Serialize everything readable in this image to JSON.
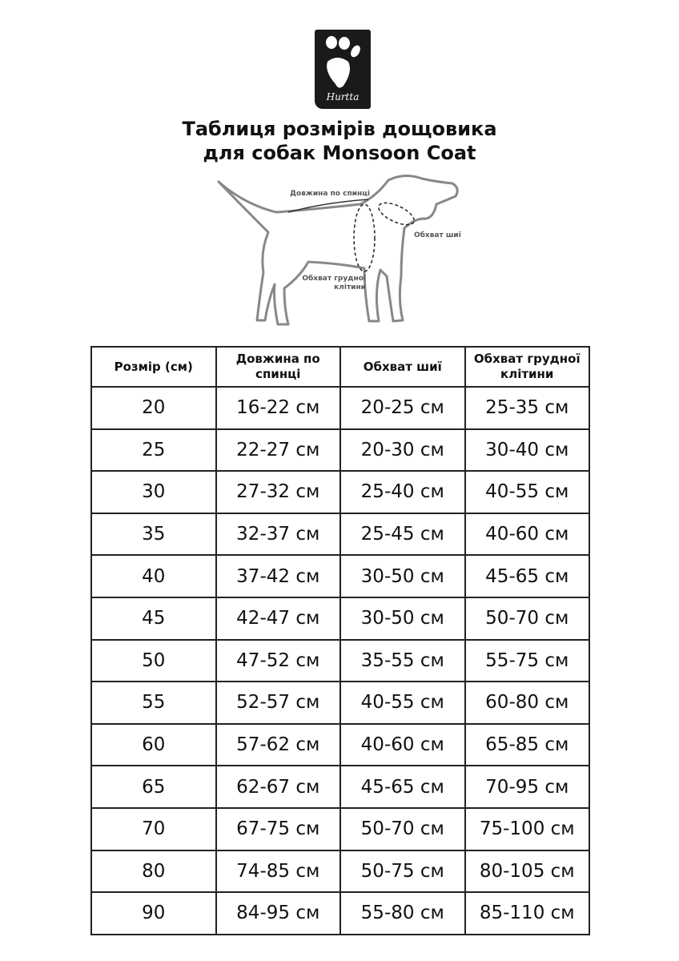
{
  "logo": {
    "brand": "Hurtta"
  },
  "title": {
    "line1": "Таблиця розмірів дощовика",
    "line2": "для собак Monsoon Coat"
  },
  "diagram": {
    "back_length": "Довжина по спинці",
    "neck": "Обхват шиї",
    "chest_line1": "Обхват грудної",
    "chest_line2": "клітини"
  },
  "table": {
    "headers": [
      "Розмір (см)",
      "Довжина по спинці",
      "Обхват шиї",
      "Обхват грудної клітини"
    ],
    "rows": [
      [
        "20",
        "16-22 см",
        "20-25 см",
        "25-35 см"
      ],
      [
        "25",
        "22-27 см",
        "20-30 см",
        "30-40 см"
      ],
      [
        "30",
        "27-32 см",
        "25-40 см",
        "40-55 см"
      ],
      [
        "35",
        "32-37 см",
        "25-45 см",
        "40-60 см"
      ],
      [
        "40",
        "37-42 см",
        "30-50 см",
        "45-65 см"
      ],
      [
        "45",
        "42-47 см",
        "30-50 см",
        "50-70 см"
      ],
      [
        "50",
        "47-52 см",
        "35-55 см",
        "55-75 см"
      ],
      [
        "55",
        "52-57 см",
        "40-55 см",
        "60-80 см"
      ],
      [
        "60",
        "57-62 см",
        "40-60 см",
        "65-85 см"
      ],
      [
        "65",
        "62-67 см",
        "45-65 см",
        "70-95 см"
      ],
      [
        "70",
        "67-75 см",
        "50-70 см",
        "75-100 см"
      ],
      [
        "80",
        "74-85 см",
        "50-75 см",
        "80-105 см"
      ],
      [
        "90",
        "84-95 см",
        "55-80 см",
        "85-110 см"
      ]
    ]
  }
}
